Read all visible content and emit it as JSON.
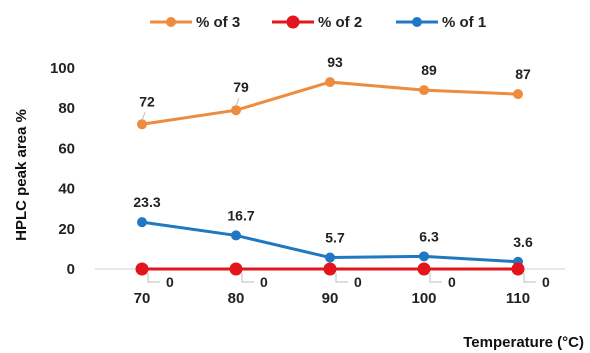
{
  "chart_data": {
    "type": "line",
    "x": [
      70,
      80,
      90,
      100,
      110
    ],
    "xlabel": "Temperature  (°C)",
    "ylabel": "HPLC peak area  %",
    "ylim": [
      0,
      100
    ],
    "yticks": [
      0,
      20,
      40,
      60,
      80,
      100
    ],
    "grid": false,
    "legend": "top",
    "series": [
      {
        "name": "% of 3",
        "color": "#ED8B3F",
        "values": [
          72,
          79,
          93,
          89,
          87
        ],
        "labels": [
          "72",
          "79",
          "93",
          "89",
          "87"
        ]
      },
      {
        "name": "% of 2",
        "color": "#E3141B",
        "values": [
          0,
          0,
          0,
          0,
          0
        ],
        "labels": [
          "0",
          "0",
          "0",
          "0",
          "0"
        ]
      },
      {
        "name": "% of 1",
        "color": "#1F78C1",
        "values": [
          23.3,
          16.7,
          5.7,
          6.3,
          3.6
        ],
        "labels": [
          "23.3",
          "16.7",
          "5.7",
          "6.3",
          "3.6"
        ]
      }
    ]
  }
}
